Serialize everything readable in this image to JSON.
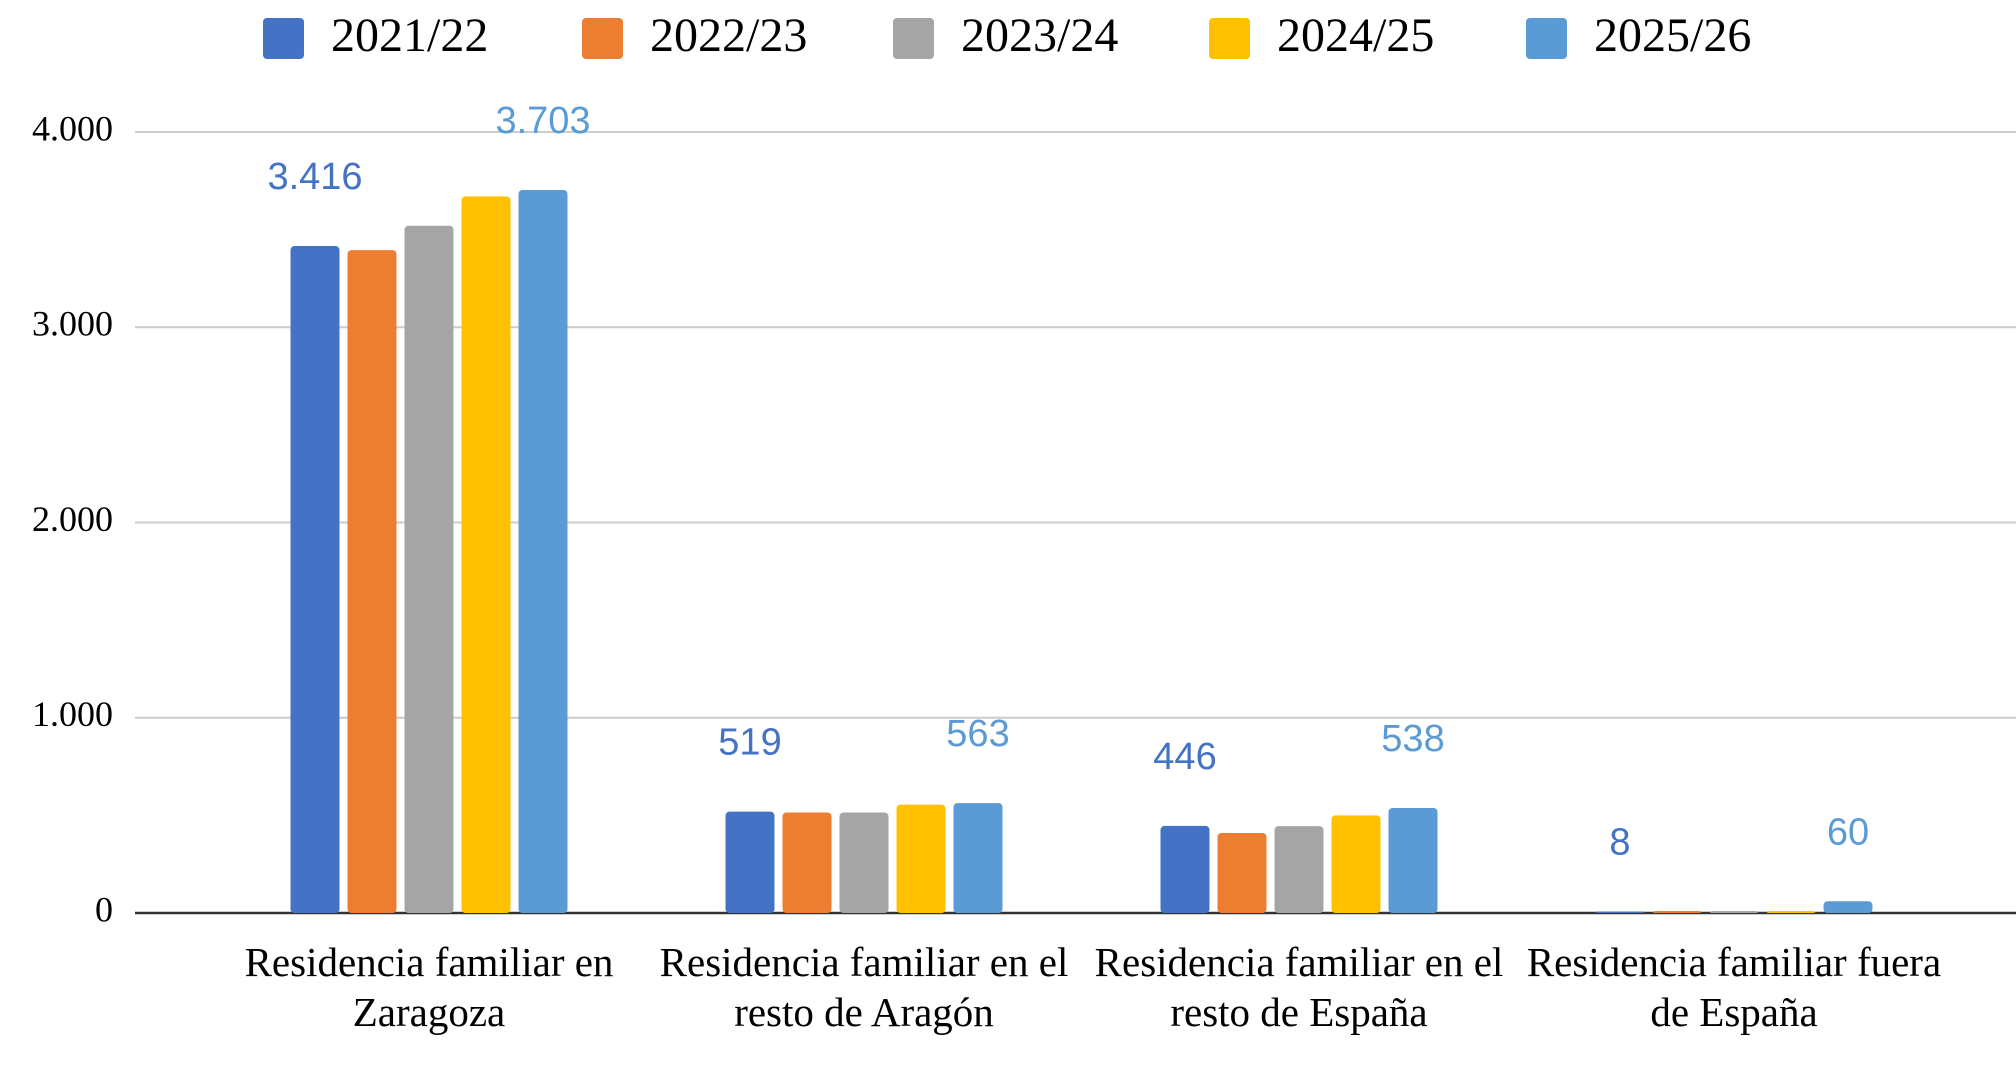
{
  "chart_data": {
    "type": "bar",
    "categories": [
      "Residencia familiar en Zaragoza",
      "Residencia familiar en el resto de Aragón",
      "Residencia familiar en el resto de España",
      "Residencia familiar fuera de España"
    ],
    "series": [
      {
        "name": "2021/22",
        "color": "#4472c4",
        "values": [
          3416,
          519,
          446,
          8
        ],
        "value_labels": [
          "3.416",
          "519",
          "446",
          "8"
        ]
      },
      {
        "name": "2022/23",
        "color": "#ed7d31",
        "values": [
          3395,
          515,
          410,
          10
        ]
      },
      {
        "name": "2023/24",
        "color": "#a5a5a5",
        "values": [
          3520,
          515,
          445,
          10
        ]
      },
      {
        "name": "2024/25",
        "color": "#ffc000",
        "values": [
          3670,
          555,
          500,
          10
        ]
      },
      {
        "name": "2025/26",
        "color": "#5b9bd5",
        "values": [
          3703,
          563,
          538,
          60
        ],
        "value_labels": [
          "3.703",
          "563",
          "538",
          "60"
        ]
      }
    ],
    "ylim": [
      0,
      4000
    ],
    "yticks": [
      0,
      {
        "value": 1000,
        "label": "1.000"
      },
      {
        "value": 2000,
        "label": "2.000"
      },
      {
        "value": 3000,
        "label": "3.000"
      },
      {
        "value": 4000,
        "label": "4.000"
      }
    ],
    "grid": true,
    "legend": "top"
  }
}
